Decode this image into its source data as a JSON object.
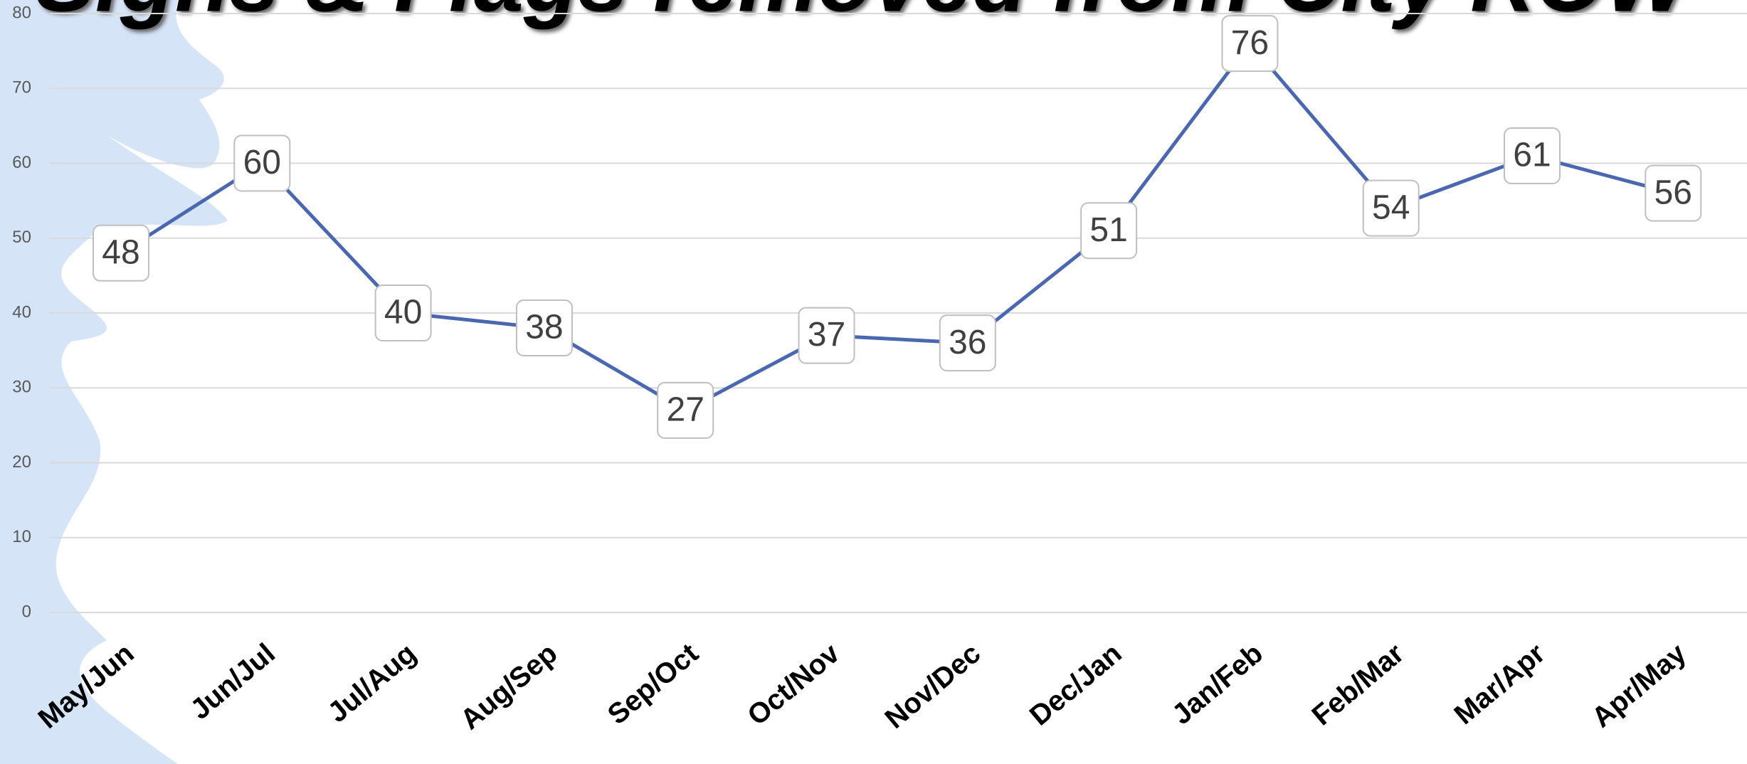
{
  "chart_data": {
    "type": "line",
    "title": "Signs & Flags removed from City ROW",
    "categories": [
      "May/Jun",
      "Jun/Jul",
      "Jul/Aug",
      "Aug/Sep",
      "Sep/Oct",
      "Oct/Nov",
      "Nov/Dec",
      "Dec/Jan",
      "Jan/Feb",
      "Feb/Mar",
      "Mar/Apr",
      "Apr/May"
    ],
    "series": [
      {
        "name": "Signs & Flags",
        "color": "#4a67b0",
        "values": [
          48,
          60,
          40,
          38,
          27,
          37,
          36,
          51,
          76,
          54,
          61,
          56
        ]
      }
    ],
    "ylim": [
      0,
      80
    ],
    "yticks": [
      0,
      10,
      20,
      30,
      40,
      50,
      60,
      70,
      80
    ],
    "grid": true
  }
}
